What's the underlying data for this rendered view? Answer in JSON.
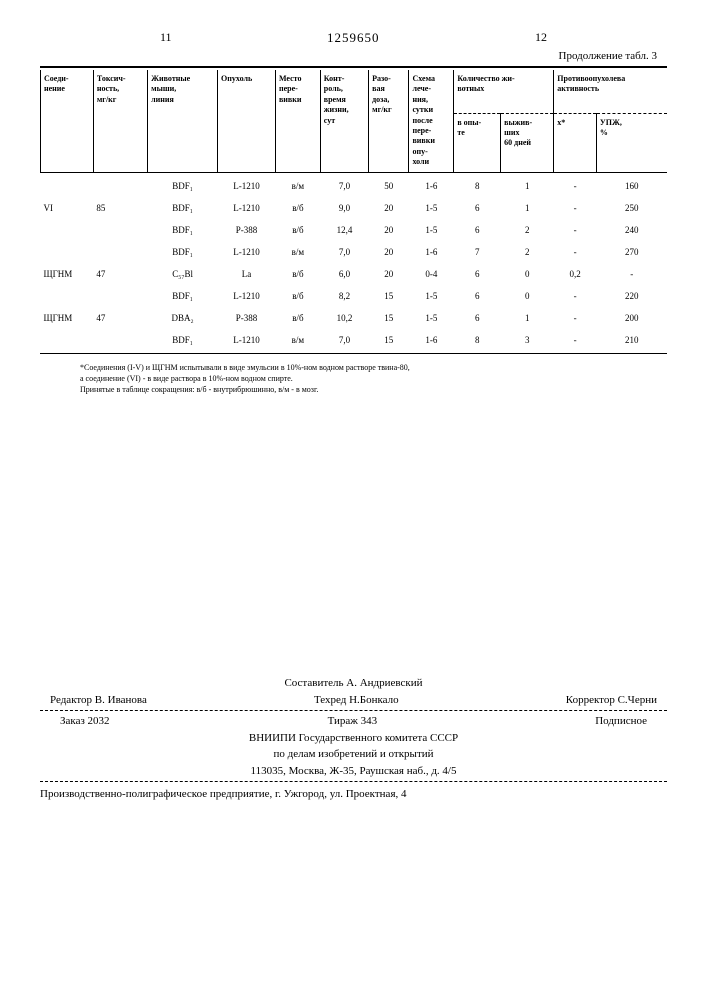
{
  "header": {
    "page_left": "11",
    "doc_number": "1259650",
    "page_right": "12",
    "caption": "Продолжение табл. 3"
  },
  "table": {
    "columns": [
      "Соеди-\nнение",
      "Токсич-\nность,\nмг/кг",
      "Животные\nмыши,\nлиния",
      "Опухоль",
      "Место\nпере-\nвивки",
      "Конт-\nроль,\nвремя\nжизни,\nсут",
      "Разо-\nвая\nдоза,\nмг/кг",
      "Схема\nлече-\nния,\nсутки\nпосле\nпере-\nвивки\nопу-\nхоли",
      "Количество жи-\nвотных",
      "",
      "Противоопухолева\nактивность",
      ""
    ],
    "subcolumns": {
      "8": "в опы-\nте",
      "9": "выжив-\nших\n60 дней",
      "10": "х*",
      "11": "УПЖ,\n%"
    },
    "rows": [
      [
        "",
        "",
        "BDF₁",
        "L-1210",
        "в/м",
        "7,0",
        "50",
        "1-6",
        "8",
        "1",
        "-",
        "160"
      ],
      [
        "VI",
        "85",
        "BDF₁",
        "L-1210",
        "в/б",
        "9,0",
        "20",
        "1-5",
        "6",
        "1",
        "-",
        "250"
      ],
      [
        "",
        "",
        "BDF₁",
        "P-388",
        "в/б",
        "12,4",
        "20",
        "1-5",
        "6",
        "2",
        "-",
        "240"
      ],
      [
        "",
        "",
        "BDF₁",
        "L-1210",
        "в/м",
        "7,0",
        "20",
        "1-6",
        "7",
        "2",
        "-",
        "270"
      ],
      [
        "ЩГНМ",
        "47",
        "C₅₇Bl",
        "La",
        "в/б",
        "6,0",
        "20",
        "0-4",
        "6",
        "0",
        "0,2",
        "-"
      ],
      [
        "",
        "",
        "BDF₁",
        "L-1210",
        "в/б",
        "8,2",
        "15",
        "1-5",
        "6",
        "0",
        "-",
        "220"
      ],
      [
        "ЩГНМ",
        "47",
        "DBA₂",
        "P-388",
        "в/б",
        "10,2",
        "15",
        "1-5",
        "6",
        "1",
        "-",
        "200"
      ],
      [
        "",
        "",
        "BDF₁",
        "L-1210",
        "в/м",
        "7,0",
        "15",
        "1-6",
        "8",
        "3",
        "-",
        "210"
      ]
    ]
  },
  "footnote": {
    "line1": "*Соединения (I-V) и ЩГНМ испытывали в виде эмульсии в 10%-ном водном растворе твина-80,",
    "line2": "а соединение (VI) - в виде раствора в 10%-ном водном спирте.",
    "line3": "Принятые в таблице сокращения: в/б - внутрибрюшинно, в/м - в мозг."
  },
  "credits": {
    "compiler": "Составитель А. Андриевский",
    "editor": "Редактор В. Иванова",
    "techred": "Техред Н.Бонкало",
    "corrector": "Корректор С.Черни"
  },
  "printing": {
    "order": "Заказ 2032",
    "tirage": "Тираж 343",
    "subscribe": "Подписное",
    "org1": "ВНИИПИ Государственного комитета СССР",
    "org2": "по делам изобретений и открытий",
    "address": "113035, Москва, Ж-35, Раушская наб., д. 4/5"
  },
  "bottom": "Производственно-полиграфическое предприятие, г. Ужгород, ул. Проектная, 4"
}
